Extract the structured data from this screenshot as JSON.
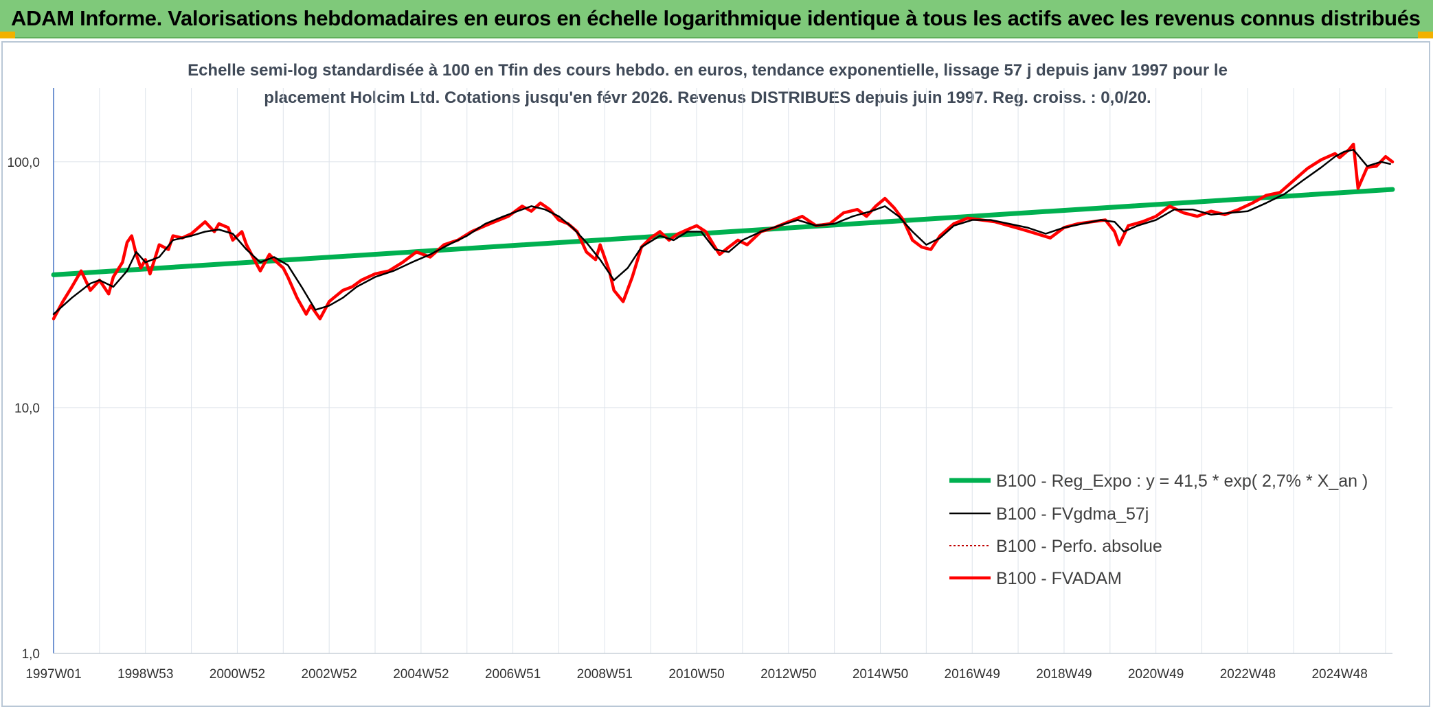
{
  "header": {
    "title": "ADAM Informe. Valorisations hebdomadaires en euros en échelle logarithmique identique à tous les actifs avec les revenus connus distribués"
  },
  "colors": {
    "banner": "#7fc97a",
    "reg_expo": "#00b050",
    "fvgdma": "#000000",
    "perfo": "#c00000",
    "fvadam": "#ff0000"
  },
  "chart_data": {
    "type": "line",
    "title_line1": "Echelle semi-log standardisée à 100 en Tfin des cours hebdo. en euros, tendance exponentielle, lissage 57 j depuis janv 1997 pour le",
    "title_line2": "placement Holcim Ltd. Cotations jusqu'en févr 2026. Revenus DISTRIBUES depuis juin 1997. Reg. croiss. : 0,0/20.",
    "y_scale": "log",
    "ylim": [
      1,
      200
    ],
    "y_ticks": [
      {
        "value": 1,
        "label": "1,0"
      },
      {
        "value": 10,
        "label": "10,0"
      },
      {
        "value": 100,
        "label": "100,0"
      }
    ],
    "x_range": [
      1997.0,
      2026.15
    ],
    "x_ticks": [
      {
        "x": 1997.0,
        "label": "1997W01"
      },
      {
        "x": 1999.0,
        "label": "1998W53"
      },
      {
        "x": 2001.0,
        "label": "2000W52"
      },
      {
        "x": 2003.0,
        "label": "2002W52"
      },
      {
        "x": 2005.0,
        "label": "2004W52"
      },
      {
        "x": 2007.0,
        "label": "2006W51"
      },
      {
        "x": 2009.0,
        "label": "2008W51"
      },
      {
        "x": 2011.0,
        "label": "2010W50"
      },
      {
        "x": 2013.0,
        "label": "2012W50"
      },
      {
        "x": 2015.0,
        "label": "2014W50"
      },
      {
        "x": 2017.0,
        "label": "2016W49"
      },
      {
        "x": 2019.0,
        "label": "2018W49"
      },
      {
        "x": 2021.0,
        "label": "2020W49"
      },
      {
        "x": 2023.0,
        "label": "2022W48"
      },
      {
        "x": 2025.0,
        "label": "2024W48"
      }
    ],
    "grid": "vertical and horizontal",
    "legend_position": "bottom-right",
    "series": [
      {
        "name": "B100 - Reg_Expo : y = 41,5 * exp( 2,7% *  X_an )",
        "style": "thick-solid",
        "x": [
          1997.0,
          2026.15
        ],
        "values": [
          34.7,
          77.2
        ]
      },
      {
        "name": "B100 - FVgdma_57j",
        "style": "thin-solid",
        "x": [
          1997.0,
          1997.4,
          1997.8,
          1998.0,
          1998.3,
          1998.6,
          1998.8,
          1999.0,
          1999.3,
          1999.6,
          2000.0,
          2000.3,
          2000.6,
          2000.9,
          2001.2,
          2001.5,
          2001.8,
          2002.1,
          2002.4,
          2002.7,
          2003.0,
          2003.3,
          2003.6,
          2004.0,
          2004.4,
          2004.8,
          2005.2,
          2005.6,
          2006.0,
          2006.4,
          2006.8,
          2007.1,
          2007.4,
          2007.7,
          2008.0,
          2008.3,
          2008.6,
          2008.9,
          2009.2,
          2009.5,
          2009.8,
          2010.2,
          2010.5,
          2010.8,
          2011.1,
          2011.4,
          2011.7,
          2012.0,
          2012.4,
          2012.8,
          2013.2,
          2013.6,
          2014.0,
          2014.4,
          2014.8,
          2015.1,
          2015.4,
          2015.7,
          2016.0,
          2016.3,
          2016.6,
          2017.0,
          2017.4,
          2017.8,
          2018.2,
          2018.6,
          2019.0,
          2019.4,
          2019.8,
          2020.1,
          2020.3,
          2020.6,
          2021.0,
          2021.4,
          2021.8,
          2022.2,
          2022.6,
          2023.0,
          2023.4,
          2023.8,
          2024.2,
          2024.6,
          2024.9,
          2025.1,
          2025.3,
          2025.6,
          2025.9,
          2026.1
        ],
        "values": [
          24,
          28,
          32,
          33,
          31,
          36,
          43,
          39,
          41,
          48,
          50,
          52,
          53,
          51,
          44,
          39,
          41,
          38,
          31,
          25,
          26,
          28,
          31,
          34,
          36,
          39,
          42,
          46,
          50,
          56,
          60,
          63,
          66,
          64,
          60,
          54,
          47,
          40,
          33,
          37,
          45,
          50,
          48,
          52,
          52,
          44,
          43,
          48,
          52,
          55,
          58,
          55,
          56,
          60,
          63,
          66,
          60,
          52,
          46,
          49,
          55,
          58,
          58,
          56,
          54,
          51,
          54,
          56,
          58,
          57,
          52,
          55,
          58,
          64,
          64,
          61,
          62,
          63,
          68,
          74,
          84,
          95,
          105,
          110,
          112,
          96,
          100,
          98
        ]
      },
      {
        "name": "B100 - Perfo. absolue",
        "style": "dotted",
        "x": [],
        "values": []
      },
      {
        "name": "B100 - FVADAM",
        "style": "thick-solid",
        "x": [
          1997.0,
          1997.2,
          1997.4,
          1997.6,
          1997.8,
          1998.0,
          1998.2,
          1998.3,
          1998.5,
          1998.6,
          1998.7,
          1998.8,
          1998.9,
          1999.0,
          1999.1,
          1999.3,
          1999.5,
          1999.6,
          1999.8,
          2000.0,
          2000.2,
          2000.3,
          2000.5,
          2000.6,
          2000.8,
          2000.9,
          2001.1,
          2001.2,
          2001.4,
          2001.5,
          2001.7,
          2001.8,
          2002.0,
          2002.1,
          2002.3,
          2002.5,
          2002.6,
          2002.8,
          2003.0,
          2003.1,
          2003.3,
          2003.5,
          2003.7,
          2004.0,
          2004.3,
          2004.6,
          2004.9,
          2005.2,
          2005.5,
          2005.8,
          2006.1,
          2006.4,
          2006.6,
          2006.9,
          2007.2,
          2007.4,
          2007.6,
          2007.8,
          2008.0,
          2008.2,
          2008.4,
          2008.6,
          2008.8,
          2008.9,
          2009.1,
          2009.2,
          2009.4,
          2009.6,
          2009.8,
          2010.0,
          2010.2,
          2010.4,
          2010.6,
          2010.8,
          2011.0,
          2011.2,
          2011.4,
          2011.5,
          2011.7,
          2011.9,
          2012.1,
          2012.4,
          2012.7,
          2013.0,
          2013.3,
          2013.6,
          2013.9,
          2014.2,
          2014.5,
          2014.7,
          2014.9,
          2015.1,
          2015.3,
          2015.5,
          2015.7,
          2015.9,
          2016.1,
          2016.3,
          2016.6,
          2016.9,
          2017.2,
          2017.5,
          2017.8,
          2018.1,
          2018.4,
          2018.7,
          2019.0,
          2019.3,
          2019.6,
          2019.9,
          2020.1,
          2020.2,
          2020.4,
          2020.7,
          2021.0,
          2021.3,
          2021.6,
          2021.9,
          2022.2,
          2022.5,
          2022.8,
          2023.1,
          2023.4,
          2023.7,
          2024.0,
          2024.3,
          2024.6,
          2024.9,
          2025.0,
          2025.2,
          2025.3,
          2025.4,
          2025.6,
          2025.8,
          2026.0,
          2026.15
        ],
        "values": [
          23,
          27,
          31,
          36,
          30,
          33,
          29,
          34,
          39,
          47,
          50,
          42,
          37,
          40,
          35,
          46,
          44,
          50,
          49,
          51,
          55,
          57,
          52,
          56,
          54,
          48,
          52,
          46,
          39,
          36,
          42,
          40,
          37,
          34,
          28,
          24,
          26,
          23,
          27,
          28,
          30,
          31,
          33,
          35,
          36,
          39,
          43,
          41,
          46,
          48,
          52,
          55,
          57,
          60,
          66,
          63,
          68,
          64,
          58,
          56,
          52,
          43,
          40,
          46,
          36,
          30,
          27,
          34,
          45,
          49,
          52,
          48,
          51,
          53,
          55,
          52,
          45,
          42,
          45,
          48,
          46,
          52,
          54,
          57,
          60,
          55,
          56,
          62,
          64,
          60,
          66,
          71,
          65,
          58,
          48,
          45,
          44,
          50,
          56,
          59,
          58,
          57,
          55,
          53,
          51,
          49,
          54,
          56,
          57,
          58,
          52,
          46,
          55,
          57,
          60,
          66,
          62,
          60,
          63,
          61,
          64,
          68,
          73,
          75,
          84,
          94,
          102,
          108,
          104,
          112,
          118,
          78,
          95,
          96,
          105,
          100
        ]
      }
    ]
  }
}
